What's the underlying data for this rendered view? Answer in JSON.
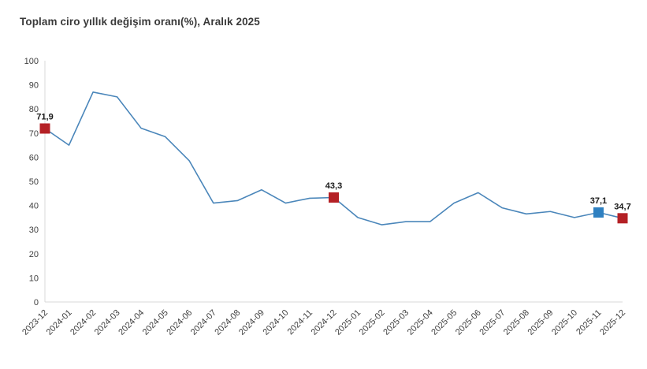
{
  "header": {
    "title": "Toplam ciro yıllık değişim oranı(%), Aralık 2025"
  },
  "chart_data": {
    "type": "line",
    "title": "Toplam ciro yıllık değişim oranı(%), Aralık 2025",
    "categories": [
      "2023-12",
      "2024-01",
      "2024-02",
      "2024-03",
      "2024-04",
      "2024-05",
      "2024-06",
      "2024-07",
      "2024-08",
      "2024-09",
      "2024-10",
      "2024-11",
      "2024-12",
      "2025-01",
      "2025-02",
      "2025-03",
      "2025-04",
      "2025-05",
      "2025-06",
      "2025-07",
      "2025-08",
      "2025-09",
      "2025-10",
      "2025-11",
      "2025-12"
    ],
    "values": [
      71.9,
      65,
      87,
      85,
      72,
      68.5,
      58.5,
      41,
      42,
      46.5,
      41,
      43,
      43.3,
      35,
      32,
      33.3,
      33.3,
      41,
      45.3,
      39,
      36.5,
      37.5,
      35,
      37.1,
      34.7
    ],
    "xlabel": "",
    "ylabel": "",
    "ylim": [
      0,
      100
    ],
    "y_ticks": [
      0,
      10,
      20,
      30,
      40,
      50,
      60,
      70,
      80,
      90,
      100
    ],
    "grid": false,
    "legend": "none",
    "line_color": "#4a86ba",
    "axis_color": "#d9d9d9",
    "tick_label_color": "#404040",
    "data_label_color": "#1a1a1a",
    "annotations": [
      {
        "category": "2023-12",
        "value": 71.9,
        "label": "71,9",
        "marker_color": "#b42025"
      },
      {
        "category": "2024-12",
        "value": 43.3,
        "label": "43,3",
        "marker_color": "#b42025"
      },
      {
        "category": "2025-11",
        "value": 37.1,
        "label": "37,1",
        "marker_color": "#2e80c1"
      },
      {
        "category": "2025-12",
        "value": 34.7,
        "label": "34,7",
        "marker_color": "#b42025"
      }
    ]
  }
}
